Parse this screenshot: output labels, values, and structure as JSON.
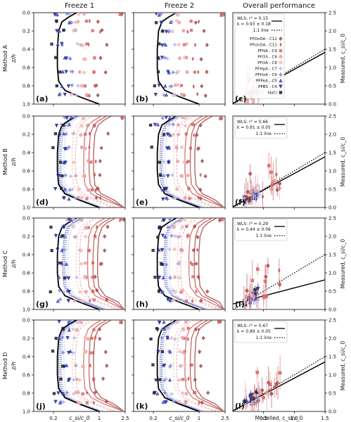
{
  "column_titles": [
    "Freeze 1",
    "Freeze 2",
    "Overall performance"
  ],
  "row_labels": [
    "Method A",
    "Method B",
    "Method C",
    "Method D"
  ],
  "profile_axis": {
    "ylabel": "z/h",
    "yticks": [
      "0.0",
      "0.2",
      "0.4",
      "0.6",
      "0.8",
      "1.0"
    ],
    "xlabel": "c_si/c_0",
    "xticks": [
      "0.2",
      "1",
      "2.5"
    ],
    "xscale": "log"
  },
  "scatter_axis": {
    "xlabel": "Modelled, c_si/c_0",
    "ylabel": "Measured, c_si/c_0",
    "xticks": [
      "0.5",
      "1.0",
      "1.5"
    ],
    "yticks": [
      "0.0",
      "0.5",
      "1.0",
      "1.5",
      "2.0",
      "2.5"
    ],
    "xlim": [
      0,
      1.5
    ],
    "ylim": [
      0,
      2.5
    ]
  },
  "panel_labels": [
    "(a)",
    "(b)",
    "(c)",
    "(d)",
    "(e)",
    "(f)",
    "(g)",
    "(h)",
    "(i)",
    "(j)",
    "(k)",
    "(l)"
  ],
  "legend_species": [
    {
      "label": "PFDoDA - C12",
      "color": "#a8494a",
      "marker": "diamond"
    },
    {
      "label": "PFUnDA - C11",
      "color": "#c25752",
      "marker": "thin_diamond"
    },
    {
      "label": "PFNA - C9",
      "color": "#d46a66",
      "marker": "square"
    },
    {
      "label": "PFOS - C8",
      "color": "#e8a0a0",
      "marker": "hexagon"
    },
    {
      "label": "PFOA - C8",
      "color": "#f4bcbc",
      "marker": "circle"
    },
    {
      "label": "PFHpA - C7",
      "color": "#b0b8e8",
      "marker": "star"
    },
    {
      "label": "PFHxA - C6",
      "color": "#7a84d8",
      "marker": "star"
    },
    {
      "label": "PFPeA - C5",
      "color": "#3d4bbf",
      "marker": "triangle_up"
    },
    {
      "label": "PFBS - C4",
      "color": "#1e2a8f",
      "marker": "triangle_down"
    },
    {
      "label": "NaCl",
      "color": "#222222",
      "marker": "square"
    }
  ],
  "legend_lines": {
    "fit_prefix": "WLS:",
    "oneone": "1:1 line"
  },
  "chart_data": [
    {
      "type": "scatter",
      "panel": "(c)",
      "row": "Method A",
      "wls": {
        "r2": 0.15,
        "k": 0.93,
        "k_err": 0.18
      },
      "r2_text": "r² = 0.15",
      "k_text": "k = 0.93 ± 0.18",
      "xlim": [
        0,
        1.5
      ],
      "ylim": [
        0,
        2.5
      ]
    },
    {
      "type": "scatter",
      "panel": "(f)",
      "row": "Method B",
      "wls": {
        "r2": 0.66,
        "k": 0.91,
        "k_err": 0.05
      },
      "r2_text": "r² = 0.66",
      "k_text": "k = 0.91 ± 0.05",
      "xlim": [
        0,
        1.5
      ],
      "ylim": [
        0,
        2.5
      ]
    },
    {
      "type": "scatter",
      "panel": "(i)",
      "row": "Method C",
      "wls": {
        "r2": 0.29,
        "k": 0.44,
        "k_err": 0.06
      },
      "r2_text": "r² = 0.29",
      "k_text": "k = 0.44 ± 0.06",
      "xlim": [
        0,
        1.5
      ],
      "ylim": [
        0,
        2.5
      ]
    },
    {
      "type": "scatter",
      "panel": "(l)",
      "row": "Method D",
      "wls": {
        "r2": 0.67,
        "k": 0.89,
        "k_err": 0.05
      },
      "r2_text": "r² = 0.67",
      "k_text": "k = 0.89 ± 0.05",
      "xlim": [
        0,
        1.5
      ],
      "ylim": [
        0,
        2.5
      ]
    },
    {
      "type": "line",
      "panel": "profiles",
      "xscale": "log",
      "xlim": [
        0.1,
        2.5
      ],
      "ylim": [
        1.0,
        0.0
      ],
      "naCl_profile": [
        [
          0.45,
          0.0
        ],
        [
          0.34,
          0.05
        ],
        [
          0.27,
          0.1
        ],
        [
          0.24,
          0.2
        ],
        [
          0.23,
          0.4
        ],
        [
          0.23,
          0.6
        ],
        [
          0.24,
          0.75
        ],
        [
          0.3,
          0.85
        ],
        [
          0.5,
          0.92
        ],
        [
          1.0,
          1.0
        ]
      ],
      "measured_depths": [
        0.02,
        0.1,
        0.2,
        0.35,
        0.5,
        0.65,
        0.8,
        0.9
      ]
    }
  ]
}
